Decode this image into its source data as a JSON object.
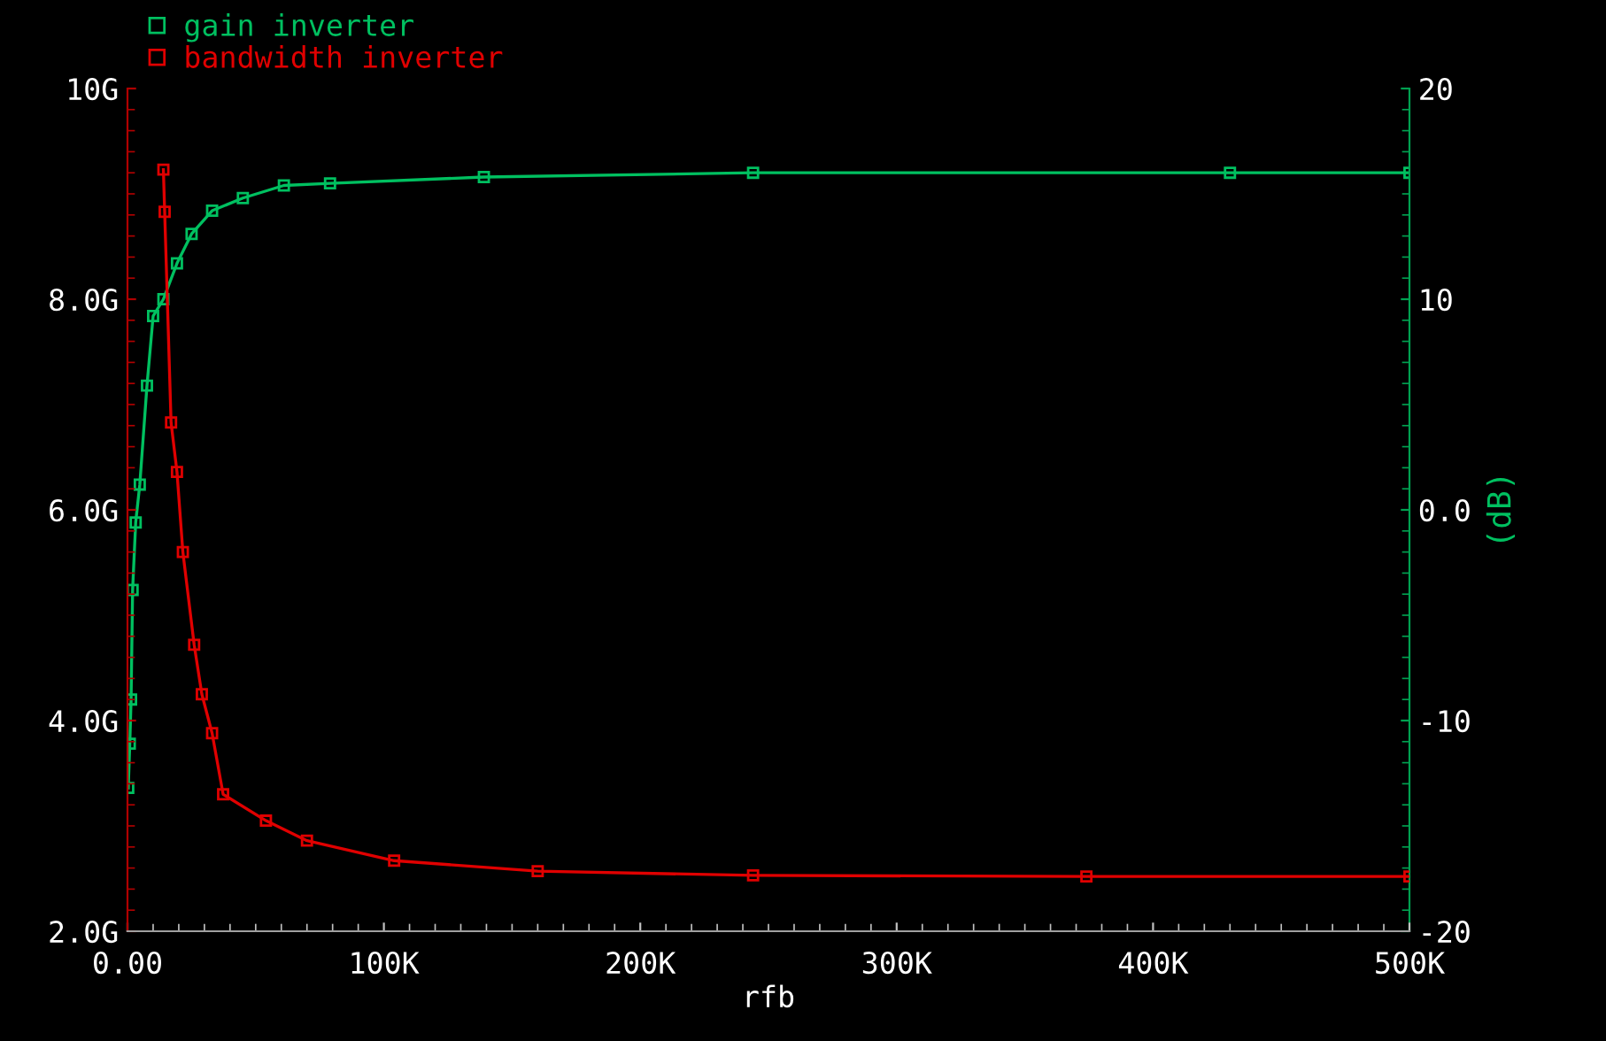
{
  "chart_data": {
    "type": "line",
    "xlabel": "rfb",
    "y2label": "(dB)",
    "legend": "top left",
    "marker": "square",
    "line_style": "solid",
    "grid": false,
    "xlim": [
      0,
      500000
    ],
    "xticks": [
      {
        "value": 0,
        "label": "0.00"
      },
      {
        "value": 100000,
        "label": "100K"
      },
      {
        "value": 200000,
        "label": "200K"
      },
      {
        "value": 300000,
        "label": "300K"
      },
      {
        "value": 400000,
        "label": "400K"
      },
      {
        "value": 500000,
        "label": "500K"
      }
    ],
    "ylim": [
      2,
      10
    ],
    "yticks": [
      {
        "value": 2,
        "label": "2.0G"
      },
      {
        "value": 4,
        "label": "4.0G"
      },
      {
        "value": 6,
        "label": "6.0G"
      },
      {
        "value": 8,
        "label": "8.0G"
      },
      {
        "value": 10,
        "label": "10G"
      }
    ],
    "y2lim": [
      -20,
      20
    ],
    "y2ticks": [
      {
        "value": -20,
        "label": "-20"
      },
      {
        "value": -10,
        "label": "-10"
      },
      {
        "value": 0,
        "label": "0.0"
      },
      {
        "value": 10,
        "label": "10"
      },
      {
        "value": 20,
        "label": "20"
      }
    ],
    "series": [
      {
        "name": "gain inverter",
        "color": "#00c060",
        "axis": "y2",
        "x": [
          300,
          900,
          1400,
          2000,
          3200,
          4800,
          7600,
          10000,
          14000,
          19300,
          25000,
          33000,
          45000,
          61000,
          79000,
          139000,
          244000,
          430000,
          500000
        ],
        "values": [
          -13.2,
          -11.1,
          -9,
          -3.8,
          -0.6,
          1.2,
          5.9,
          9.2,
          10,
          11.7,
          13.1,
          14.2,
          14.8,
          15.4,
          15.5,
          15.8,
          16,
          16,
          16
        ]
      },
      {
        "name": "bandwidth inverter",
        "color": "#e00000",
        "x": [
          14000,
          14500,
          17000,
          19300,
          21600,
          26000,
          29000,
          33000,
          37300,
          54000,
          70000,
          104000,
          160000,
          244000,
          374000,
          500000
        ],
        "values": [
          9.23,
          8.83,
          6.83,
          6.36,
          5.6,
          4.72,
          4.25,
          3.88,
          3.3,
          3.05,
          2.86,
          2.67,
          2.57,
          2.53,
          2.52,
          2.52
        ]
      }
    ]
  }
}
